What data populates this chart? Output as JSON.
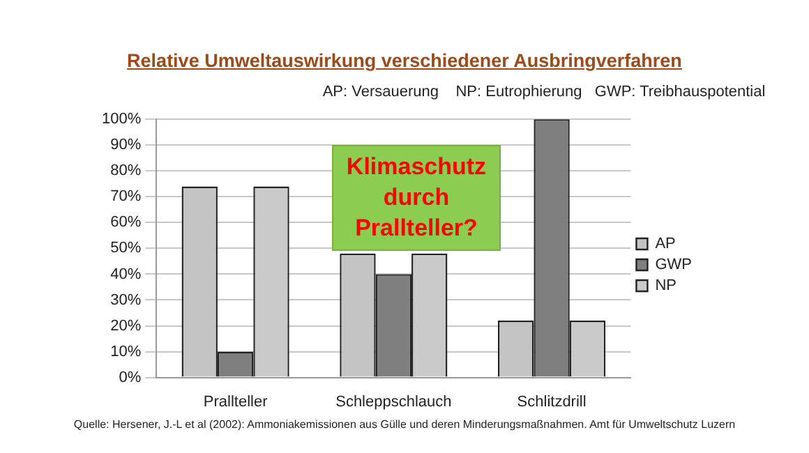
{
  "chart_data": {
    "type": "bar",
    "title": "Relative Umweltauswirkung verschiedener Ausbringverfahren",
    "subtitle": "AP: Versauerung    NP: Eutrophierung   GWP: Treibhauspotential",
    "categories": [
      "Prallteller",
      "Schleppschlauch",
      "Schlitzdrill"
    ],
    "series": [
      {
        "name": "AP",
        "color": "#c4c4c4",
        "values": [
          74,
          48,
          22
        ]
      },
      {
        "name": "GWP",
        "color": "#7f7f7f",
        "values": [
          10,
          40,
          100
        ]
      },
      {
        "name": "NP",
        "color": "#cacaca",
        "values": [
          74,
          48,
          22
        ]
      }
    ],
    "ylim": [
      0,
      100
    ],
    "yticks": [
      {
        "value": 0,
        "label": "0%"
      },
      {
        "value": 10,
        "label": "10%"
      },
      {
        "value": 20,
        "label": "20%"
      },
      {
        "value": 30,
        "label": "30%"
      },
      {
        "value": 40,
        "label": "40%"
      },
      {
        "value": 50,
        "label": "50%"
      },
      {
        "value": 60,
        "label": "60%"
      },
      {
        "value": 70,
        "label": "70%"
      },
      {
        "value": 80,
        "label": "80%"
      },
      {
        "value": 90,
        "label": "90%"
      },
      {
        "value": 100,
        "label": "100%"
      }
    ],
    "grid": "y",
    "legend": "right",
    "annotations": [
      "Klimaschutz durch Prallteller?",
      "Quelle: Hersener, J.-L et al (2002): Ammoniakemissionen aus Gülle und deren Minderungsmaßnahmen. Amt für Umweltschutz Luzern"
    ]
  }
}
